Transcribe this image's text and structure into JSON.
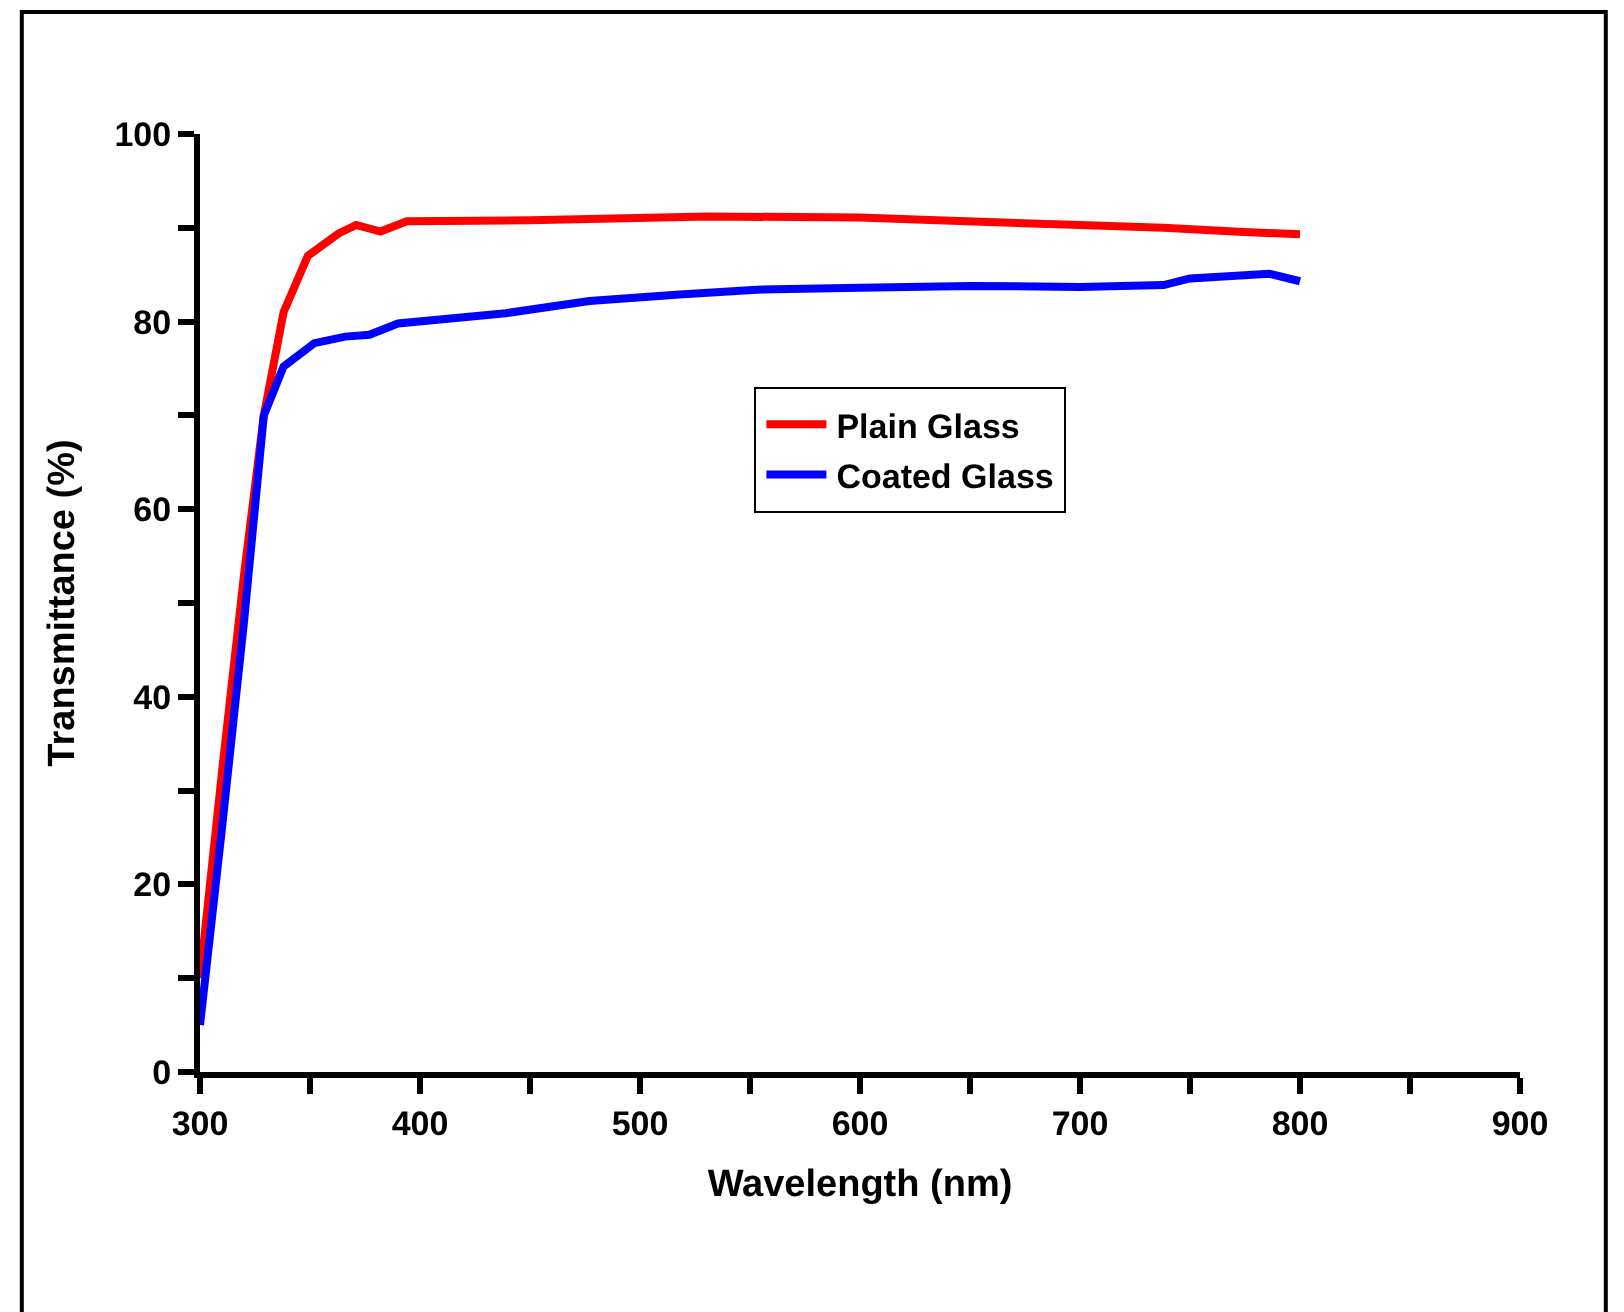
{
  "chart_data": {
    "type": "line",
    "xlabel": "Wavelength (nm)",
    "ylabel": "Transmittance (%)",
    "xlim": [
      300,
      900
    ],
    "ylim": [
      0,
      100
    ],
    "xticks": [
      300,
      {
        "value": 350,
        "label": null
      },
      400,
      {
        "value": 450,
        "label": null
      },
      500,
      {
        "value": 550,
        "label": null
      },
      600,
      {
        "value": 650,
        "label": null
      },
      700,
      {
        "value": 750,
        "label": null
      },
      800,
      {
        "value": 850,
        "label": null
      },
      900
    ],
    "yticks": [
      0,
      {
        "value": 10,
        "label": null
      },
      20,
      {
        "value": 30,
        "label": null
      },
      40,
      {
        "value": 50,
        "label": null
      },
      60,
      {
        "value": 70,
        "label": null
      },
      80,
      {
        "value": 90,
        "label": null
      },
      100
    ],
    "legend": "top right",
    "marker": "none",
    "line_style": "solid",
    "series": [
      {
        "name": "Plain Glass",
        "color": "#ff0000",
        "x": [
          300,
          310,
          320,
          329,
          338,
          349,
          363,
          371,
          382,
          394,
          450,
          531,
          600,
          635,
          700,
          738,
          770,
          800
        ],
        "values": [
          10,
          32,
          53,
          70,
          81,
          87,
          89.4,
          90.3,
          89.6,
          90.7,
          90.8,
          91.2,
          91.1,
          90.8,
          90.3,
          90,
          89.6,
          89.3
        ]
      },
      {
        "name": "Coated Glass",
        "color": "#0000ff",
        "x": [
          300,
          310,
          320,
          329,
          338,
          352,
          366,
          377,
          390,
          439,
          477,
          518,
          553,
          600,
          650,
          700,
          738,
          750,
          786,
          800
        ],
        "values": [
          5,
          26,
          48,
          70,
          75.2,
          77.7,
          78.4,
          78.6,
          79.8,
          80.9,
          82.2,
          82.9,
          83.4,
          83.6,
          83.8,
          83.7,
          83.9,
          84.6,
          85.1,
          84.3
        ]
      }
    ]
  }
}
